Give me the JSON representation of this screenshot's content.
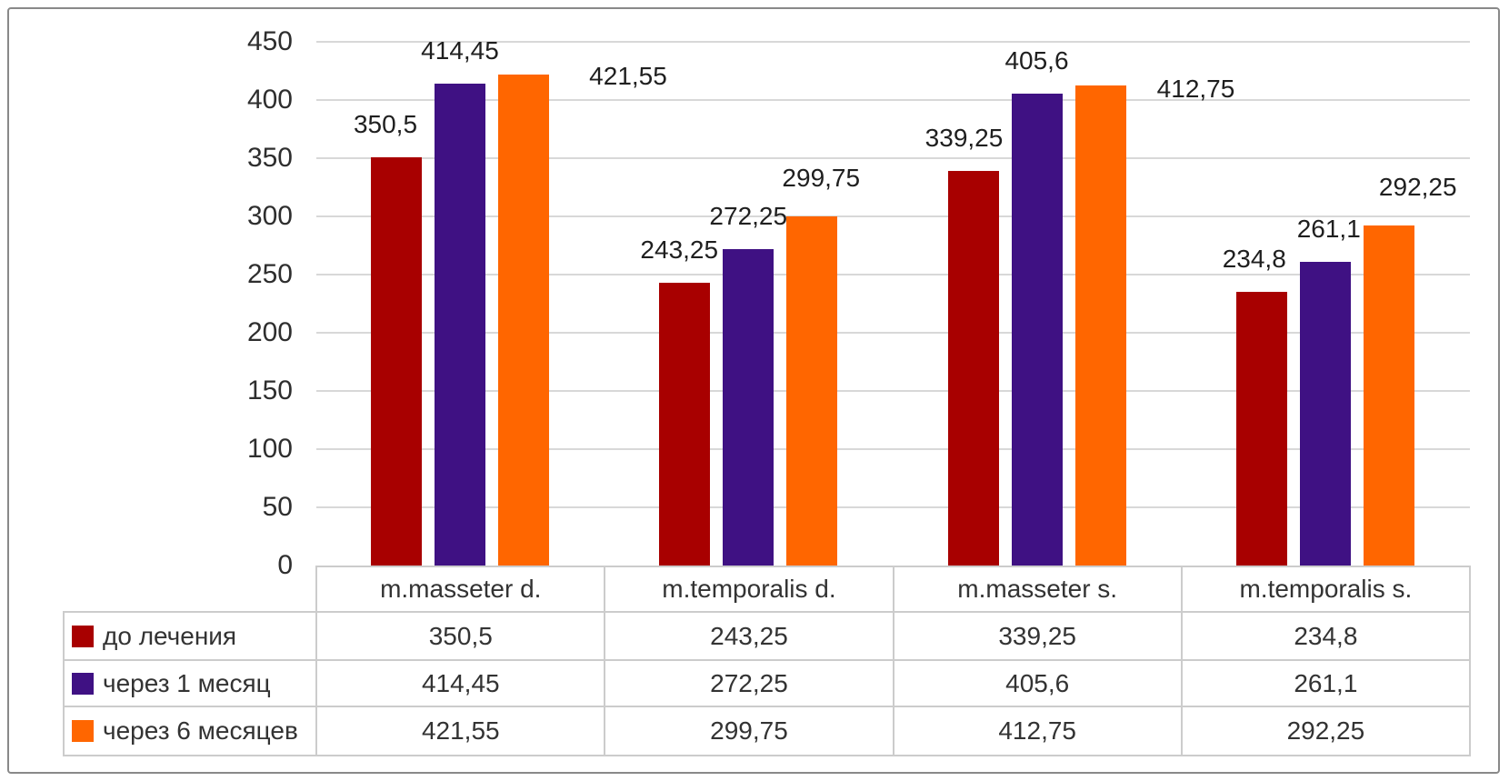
{
  "chart_data": {
    "type": "bar",
    "title": "",
    "xlabel": "",
    "ylabel": "",
    "ylim": [
      0,
      450
    ],
    "ytick_step": 50,
    "yticks": [
      "450",
      "400",
      "350",
      "300",
      "250",
      "200",
      "150",
      "100",
      "50",
      "0"
    ],
    "grid": true,
    "legend_position": "table-left",
    "categories": [
      "m.masseter d.",
      "m.temporalis d.",
      "m.masseter s.",
      "m.temporalis s."
    ],
    "series": [
      {
        "name": "до лечения",
        "color": "#a80000",
        "values": [
          350.5,
          243.25,
          339.25,
          234.8
        ],
        "labels": [
          "350,5",
          "243,25",
          "339,25",
          "234,8"
        ],
        "label_offsets": [
          {
            "dx": -12,
            "dy": 0
          },
          {
            "dx": -6,
            "dy": 0
          },
          {
            "dx": -10,
            "dy": 0
          },
          {
            "dx": -8,
            "dy": 0
          }
        ]
      },
      {
        "name": "через 1 месяц",
        "color": "#3f1183",
        "values": [
          414.45,
          272.25,
          405.6,
          261.1
        ],
        "labels": [
          "414,45",
          "272,25",
          "405,6",
          "261,1"
        ],
        "label_offsets": [
          {
            "dx": 0,
            "dy": 0
          },
          {
            "dx": 0,
            "dy": 0
          },
          {
            "dx": 0,
            "dy": 0
          },
          {
            "dx": 4,
            "dy": 0
          }
        ]
      },
      {
        "name": "через 6 месяцев",
        "color": "#ff6600",
        "values": [
          421.55,
          299.75,
          412.75,
          292.25
        ],
        "labels": [
          "421,55",
          "299,75",
          "412,75",
          "292,25"
        ],
        "label_offsets": [
          {
            "dx": 115,
            "dy": -38
          },
          {
            "dx": 10,
            "dy": 6
          },
          {
            "dx": 105,
            "dy": -40
          },
          {
            "dx": 32,
            "dy": 6
          }
        ]
      }
    ]
  }
}
